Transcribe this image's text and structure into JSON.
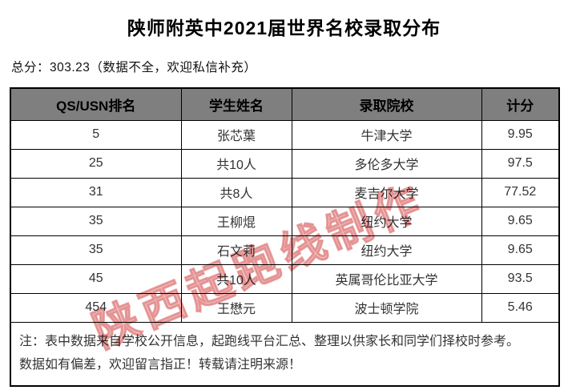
{
  "title": "陕师附英中2021届世界名校录取分布",
  "subtitle": "总分：303.23（数据不全，欢迎私信补充）",
  "watermark": "陕西起跑线制作",
  "table": {
    "headers": [
      "QS/USN排名",
      "学生姓名",
      "录取院校",
      "计分"
    ],
    "rows": [
      {
        "ranking": "5",
        "student": "张芯葉",
        "institution": "牛津大学",
        "score": "9.95"
      },
      {
        "ranking": "25",
        "student": "共10人",
        "institution": "多伦多大学",
        "score": "97.5"
      },
      {
        "ranking": "31",
        "student": "共8人",
        "institution": "麦吉尔大学",
        "score": "77.52"
      },
      {
        "ranking": "35",
        "student": "王柳焜",
        "institution": "纽约大学",
        "score": "9.65"
      },
      {
        "ranking": "35",
        "student": "石文莉",
        "institution": "纽约大学",
        "score": "9.65"
      },
      {
        "ranking": "45",
        "student": "共10人",
        "institution": "英属哥伦比亚大学",
        "score": "93.5"
      },
      {
        "ranking": "454",
        "student": "王懋元",
        "institution": "波士顿学院",
        "score": "5.46"
      }
    ],
    "note_line1": "注：表中数据来自学校公开信息，起跑线平台汇总、整理以供家长和同学们择校时参考。",
    "note_line2": "数据如有偏差，欢迎留言指正！转载请注明来源！"
  },
  "colors": {
    "header_bg": "#7f7f7f",
    "border": "#000000",
    "watermark_pink": "#e68c8c"
  }
}
